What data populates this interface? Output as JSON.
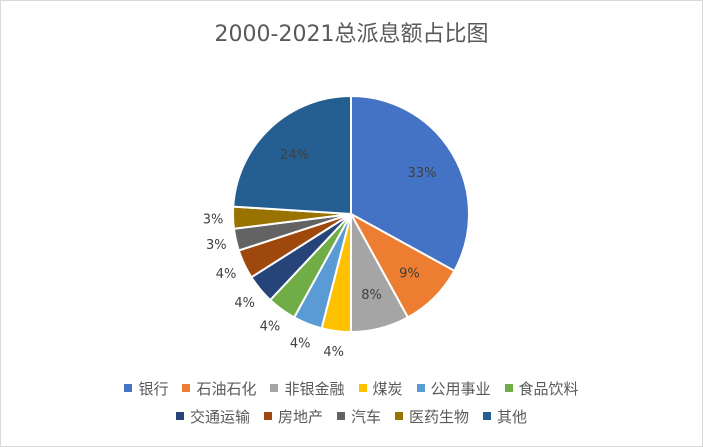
{
  "chart_data": {
    "type": "pie",
    "title": "2000-2021总派息额占比图",
    "categories": [
      "银行",
      "石油石化",
      "非银金融",
      "煤炭",
      "公用事业",
      "食品饮料",
      "交通运输",
      "房地产",
      "汽车",
      "医药生物",
      "其他"
    ],
    "values": [
      33,
      9,
      8,
      4,
      4,
      4,
      4,
      4,
      3,
      3,
      24
    ],
    "labels": [
      "33%",
      "9%",
      "8%",
      "4%",
      "4%",
      "4%",
      "4%",
      "4%",
      "3%",
      "3%",
      "24%"
    ],
    "colors": [
      "#4472C4",
      "#ED7D31",
      "#A5A5A5",
      "#FFC000",
      "#5B9BD5",
      "#70AD47",
      "#264478",
      "#9E480E",
      "#636363",
      "#997300",
      "#255E91"
    ],
    "legend_position": "bottom"
  }
}
